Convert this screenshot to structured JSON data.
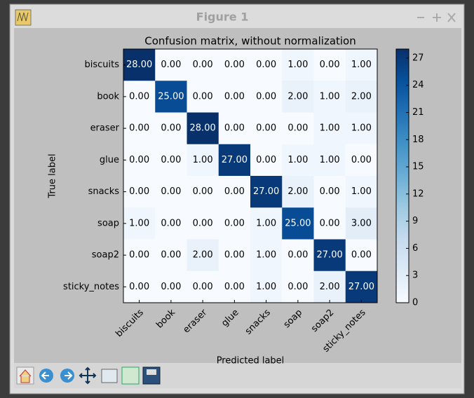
{
  "window": {
    "title": "Figure 1"
  },
  "chart_data": {
    "type": "heatmap",
    "title": "Confusion matrix, without normalization",
    "x_label": "Predicted label",
    "y_label": "True label",
    "x_categories": [
      "biscuits",
      "book",
      "eraser",
      "glue",
      "snacks",
      "soap",
      "soap2",
      "sticky_notes"
    ],
    "y_categories": [
      "biscuits",
      "book",
      "eraser",
      "glue",
      "snacks",
      "soap",
      "soap2",
      "sticky_notes"
    ],
    "values": [
      [
        28,
        0,
        0,
        0,
        0,
        1,
        0,
        1
      ],
      [
        0,
        25,
        0,
        0,
        0,
        2,
        1,
        2
      ],
      [
        0,
        0,
        28,
        0,
        0,
        0,
        1,
        1
      ],
      [
        0,
        0,
        1,
        27,
        0,
        1,
        1,
        0
      ],
      [
        0,
        0,
        0,
        0,
        27,
        2,
        0,
        1
      ],
      [
        1,
        0,
        0,
        0,
        1,
        25,
        0,
        3
      ],
      [
        0,
        0,
        2,
        0,
        1,
        0,
        27,
        0
      ],
      [
        0,
        0,
        0,
        0,
        1,
        0,
        2,
        27
      ]
    ],
    "value_labels": [
      [
        "28.00",
        "0.00",
        "0.00",
        "0.00",
        "0.00",
        "1.00",
        "0.00",
        "1.00"
      ],
      [
        "0.00",
        "25.00",
        "0.00",
        "0.00",
        "0.00",
        "2.00",
        "1.00",
        "2.00"
      ],
      [
        "0.00",
        "0.00",
        "28.00",
        "0.00",
        "0.00",
        "0.00",
        "1.00",
        "1.00"
      ],
      [
        "0.00",
        "0.00",
        "1.00",
        "27.00",
        "0.00",
        "1.00",
        "1.00",
        "0.00"
      ],
      [
        "0.00",
        "0.00",
        "0.00",
        "0.00",
        "27.00",
        "2.00",
        "0.00",
        "1.00"
      ],
      [
        "1.00",
        "0.00",
        "0.00",
        "0.00",
        "1.00",
        "25.00",
        "0.00",
        "3.00"
      ],
      [
        "0.00",
        "0.00",
        "2.00",
        "0.00",
        "1.00",
        "0.00",
        "27.00",
        "0.00"
      ],
      [
        "0.00",
        "0.00",
        "0.00",
        "0.00",
        "1.00",
        "0.00",
        "2.00",
        "27.00"
      ]
    ],
    "colormap": "Blues",
    "clim": [
      0,
      28
    ],
    "cticks": [
      0,
      3,
      6,
      9,
      12,
      15,
      18,
      21,
      24,
      27
    ]
  }
}
